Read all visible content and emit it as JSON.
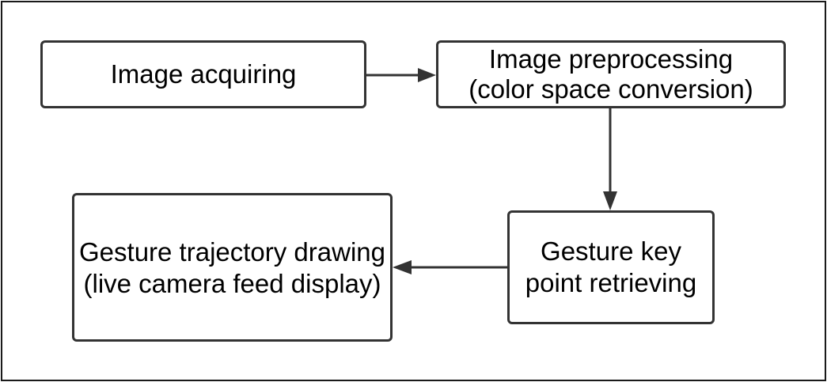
{
  "diagram": {
    "nodes": [
      {
        "id": "n1",
        "lines": [
          "Image acquiring"
        ]
      },
      {
        "id": "n2",
        "lines": [
          "Image preprocessing",
          "(color space conversion)"
        ]
      },
      {
        "id": "n3",
        "lines": [
          "Gesture key",
          "point retrieving"
        ]
      },
      {
        "id": "n4",
        "lines": [
          "Gesture trajectory drawing",
          "(live camera feed display)"
        ]
      }
    ],
    "edges": [
      {
        "from": "n1",
        "to": "n2"
      },
      {
        "from": "n2",
        "to": "n3"
      },
      {
        "from": "n3",
        "to": "n4"
      }
    ],
    "colors": {
      "border": "#333333",
      "arrow": "#333333",
      "frame": "#1a1a1a",
      "text": "#000000"
    }
  }
}
